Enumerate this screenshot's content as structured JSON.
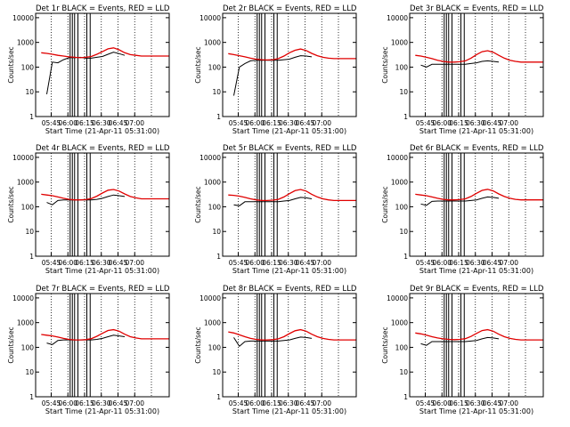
{
  "figure": {
    "background": "#ffffff"
  },
  "colors": {
    "events": "#000000",
    "lld": "#e00000",
    "frame": "#000000",
    "dotted": "#000000"
  },
  "common": {
    "xlabel": "Start Time (21-Apr-11 05:31:00)",
    "ylabel": "Counts/sec",
    "x_ticks": [
      "05:45",
      "06:00",
      "06:15",
      "06:30",
      "06:45",
      "07:00"
    ],
    "y_ticks": [
      "1",
      "10",
      "100",
      "1000",
      "10000"
    ],
    "xlim_minutes": [
      0,
      120
    ],
    "ylim": [
      1,
      15000
    ],
    "y_scale": "log",
    "dotted_vlines_minutes": [
      14,
      29,
      44,
      59,
      74,
      89,
      104
    ],
    "solid_vlines_minutes": [
      31,
      33,
      35,
      38,
      46,
      49
    ]
  },
  "chart_data": [
    {
      "type": "line",
      "title": "Det 1r BLACK = Events, RED = LLD",
      "x_minutes": [
        0,
        5,
        10,
        15,
        20,
        25,
        30,
        35,
        40,
        45,
        50,
        55,
        60,
        65,
        70,
        75,
        80,
        85,
        90,
        95,
        100,
        105,
        110,
        115,
        120
      ],
      "series": [
        {
          "name": "Events",
          "values": [
            null,
            null,
            8,
            160,
            150,
            200,
            240,
            240,
            250,
            230,
            230,
            250,
            270,
            330,
            400,
            350,
            300,
            null,
            null,
            null,
            null,
            null,
            null,
            null,
            null
          ]
        },
        {
          "name": "LLD",
          "values": [
            null,
            380,
            360,
            330,
            300,
            280,
            260,
            250,
            240,
            250,
            270,
            330,
            420,
            550,
            600,
            500,
            380,
            320,
            300,
            280,
            280,
            280,
            280,
            280,
            280
          ]
        }
      ]
    },
    {
      "type": "line",
      "title": "Det 2r BLACK = Events, RED = LLD",
      "x_minutes": [
        0,
        5,
        10,
        15,
        20,
        25,
        30,
        35,
        40,
        45,
        50,
        55,
        60,
        65,
        70,
        75,
        80,
        85,
        90,
        95,
        100,
        105,
        110,
        115,
        120
      ],
      "series": [
        {
          "name": "Events",
          "values": [
            null,
            null,
            7,
            100,
            140,
            180,
            190,
            190,
            190,
            190,
            190,
            200,
            210,
            250,
            290,
            280,
            260,
            null,
            null,
            null,
            null,
            null,
            null,
            null,
            null
          ]
        },
        {
          "name": "LLD",
          "values": [
            null,
            350,
            320,
            290,
            260,
            230,
            210,
            200,
            195,
            200,
            220,
            280,
            380,
            480,
            540,
            470,
            360,
            290,
            250,
            230,
            220,
            220,
            220,
            220,
            220
          ]
        }
      ]
    },
    {
      "type": "line",
      "title": "Det 3r BLACK = Events, RED = LLD",
      "x_minutes": [
        0,
        5,
        10,
        15,
        20,
        25,
        30,
        35,
        40,
        45,
        50,
        55,
        60,
        65,
        70,
        75,
        80,
        85,
        90,
        95,
        100,
        105,
        110,
        115,
        120
      ],
      "series": [
        {
          "name": "Events",
          "values": [
            null,
            null,
            120,
            100,
            130,
            130,
            130,
            130,
            130,
            130,
            130,
            140,
            150,
            170,
            180,
            170,
            160,
            null,
            null,
            null,
            null,
            null,
            null,
            null,
            null
          ]
        },
        {
          "name": "LLD",
          "values": [
            null,
            300,
            280,
            250,
            220,
            190,
            170,
            160,
            160,
            165,
            180,
            230,
            320,
            420,
            460,
            400,
            300,
            230,
            190,
            170,
            160,
            160,
            160,
            160,
            160
          ]
        }
      ]
    },
    {
      "type": "line",
      "title": "Det 4r BLACK = Events, RED = LLD",
      "x_minutes": [
        0,
        5,
        10,
        15,
        20,
        25,
        30,
        35,
        40,
        45,
        50,
        55,
        60,
        65,
        70,
        75,
        80,
        85,
        90,
        95,
        100,
        105,
        110,
        115,
        120
      ],
      "series": [
        {
          "name": "Events",
          "values": [
            null,
            null,
            150,
            120,
            180,
            190,
            190,
            190,
            190,
            190,
            190,
            200,
            220,
            260,
            300,
            280,
            260,
            null,
            null,
            null,
            null,
            null,
            null,
            null,
            null
          ]
        },
        {
          "name": "LLD",
          "values": [
            null,
            320,
            300,
            280,
            250,
            220,
            200,
            190,
            190,
            195,
            215,
            270,
            360,
            470,
            500,
            430,
            330,
            260,
            230,
            210,
            210,
            210,
            210,
            210,
            210
          ]
        }
      ]
    },
    {
      "type": "line",
      "title": "Det 5r BLACK = Events, RED = LLD",
      "x_minutes": [
        0,
        5,
        10,
        15,
        20,
        25,
        30,
        35,
        40,
        45,
        50,
        55,
        60,
        65,
        70,
        75,
        80,
        85,
        90,
        95,
        100,
        105,
        110,
        115,
        120
      ],
      "series": [
        {
          "name": "Events",
          "values": [
            null,
            null,
            120,
            110,
            160,
            160,
            160,
            160,
            160,
            160,
            160,
            170,
            180,
            210,
            240,
            230,
            210,
            null,
            null,
            null,
            null,
            null,
            null,
            null,
            null
          ]
        },
        {
          "name": "LLD",
          "values": [
            null,
            300,
            290,
            270,
            240,
            210,
            190,
            180,
            180,
            185,
            200,
            250,
            340,
            450,
            500,
            430,
            320,
            250,
            210,
            190,
            180,
            180,
            180,
            180,
            180
          ]
        }
      ]
    },
    {
      "type": "line",
      "title": "Det 6r BLACK = Events, RED = LLD",
      "x_minutes": [
        0,
        5,
        10,
        15,
        20,
        25,
        30,
        35,
        40,
        45,
        50,
        55,
        60,
        65,
        70,
        75,
        80,
        85,
        90,
        95,
        100,
        105,
        110,
        115,
        120
      ],
      "series": [
        {
          "name": "Events",
          "values": [
            null,
            null,
            130,
            115,
            165,
            170,
            170,
            170,
            170,
            170,
            170,
            180,
            190,
            220,
            250,
            240,
            220,
            null,
            null,
            null,
            null,
            null,
            null,
            null,
            null
          ]
        },
        {
          "name": "LLD",
          "values": [
            null,
            320,
            300,
            280,
            250,
            220,
            200,
            190,
            190,
            195,
            210,
            260,
            350,
            460,
            510,
            440,
            330,
            260,
            220,
            200,
            190,
            190,
            190,
            190,
            190
          ]
        }
      ]
    },
    {
      "type": "line",
      "title": "Det 7r BLACK = Events, RED = LLD",
      "x_minutes": [
        0,
        5,
        10,
        15,
        20,
        25,
        30,
        35,
        40,
        45,
        50,
        55,
        60,
        65,
        70,
        75,
        80,
        85,
        90,
        95,
        100,
        105,
        110,
        115,
        120
      ],
      "series": [
        {
          "name": "Events",
          "values": [
            null,
            null,
            150,
            130,
            190,
            200,
            200,
            200,
            200,
            200,
            200,
            210,
            230,
            270,
            310,
            290,
            270,
            null,
            null,
            null,
            null,
            null,
            null,
            null,
            null
          ]
        },
        {
          "name": "LLD",
          "values": [
            null,
            330,
            310,
            290,
            260,
            230,
            210,
            200,
            200,
            205,
            225,
            280,
            370,
            480,
            520,
            450,
            340,
            270,
            240,
            220,
            220,
            220,
            220,
            220,
            220
          ]
        }
      ]
    },
    {
      "type": "line",
      "title": "Det 8r BLACK = Events, RED = LLD",
      "x_minutes": [
        0,
        5,
        10,
        15,
        20,
        25,
        30,
        35,
        40,
        45,
        50,
        55,
        60,
        65,
        70,
        75,
        80,
        85,
        90,
        95,
        100,
        105,
        110,
        115,
        120
      ],
      "series": [
        {
          "name": "Events",
          "values": [
            null,
            null,
            250,
            110,
            170,
            180,
            180,
            180,
            180,
            180,
            180,
            190,
            200,
            230,
            260,
            250,
            230,
            null,
            null,
            null,
            null,
            null,
            null,
            null,
            null
          ]
        },
        {
          "name": "LLD",
          "values": [
            null,
            420,
            380,
            320,
            270,
            230,
            210,
            200,
            200,
            205,
            220,
            270,
            360,
            470,
            520,
            450,
            340,
            270,
            230,
            210,
            200,
            200,
            200,
            200,
            200
          ]
        }
      ]
    },
    {
      "type": "line",
      "title": "Det 9r BLACK = Events, RED = LLD",
      "x_minutes": [
        0,
        5,
        10,
        15,
        20,
        25,
        30,
        35,
        40,
        45,
        50,
        55,
        60,
        65,
        70,
        75,
        80,
        85,
        90,
        95,
        100,
        105,
        110,
        115,
        120
      ],
      "series": [
        {
          "name": "Events",
          "values": [
            null,
            null,
            140,
            120,
            170,
            170,
            170,
            170,
            170,
            170,
            170,
            180,
            190,
            220,
            250,
            240,
            220,
            null,
            null,
            null,
            null,
            null,
            null,
            null,
            null
          ]
        },
        {
          "name": "LLD",
          "values": [
            null,
            380,
            350,
            310,
            270,
            240,
            220,
            210,
            205,
            210,
            225,
            275,
            365,
            475,
            520,
            450,
            340,
            270,
            230,
            210,
            200,
            200,
            200,
            200,
            200
          ]
        }
      ]
    }
  ]
}
